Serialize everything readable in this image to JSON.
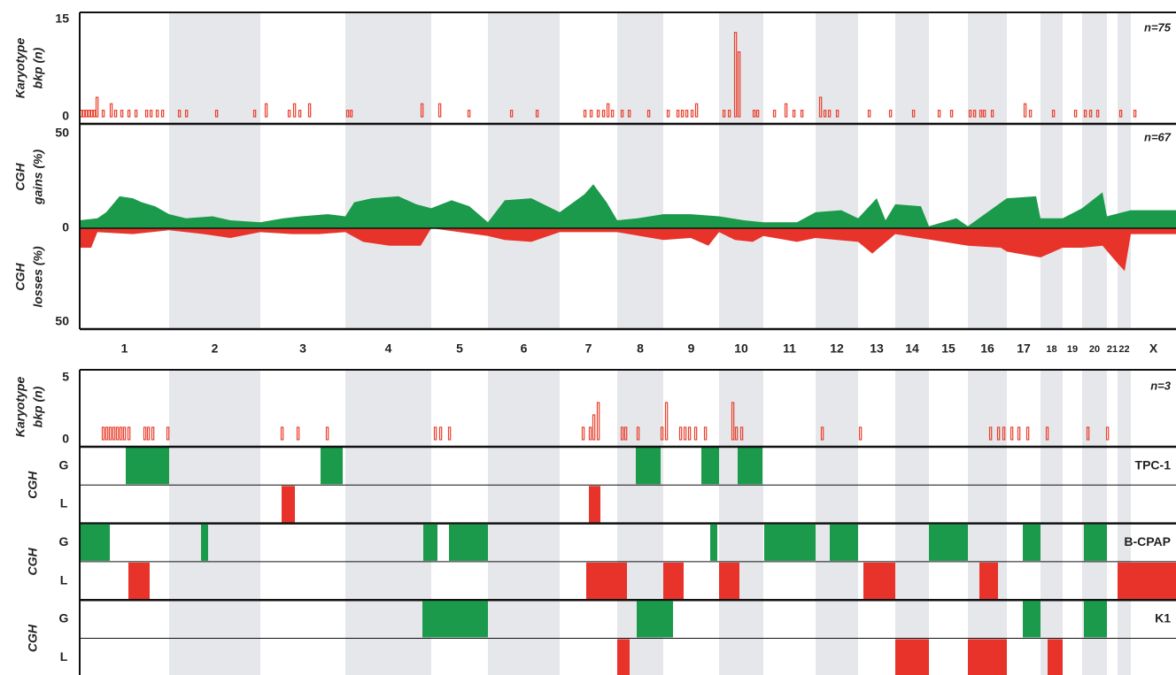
{
  "chromosomes": {
    "labels": [
      "1",
      "2",
      "3",
      "4",
      "5",
      "6",
      "7",
      "8",
      "9",
      "10",
      "11",
      "12",
      "13",
      "14",
      "15",
      "16",
      "17",
      "18",
      "19",
      "20",
      "21",
      "22",
      "X"
    ],
    "bounds": [
      0,
      101,
      204,
      300,
      397,
      461,
      542,
      607,
      659,
      722,
      772,
      831,
      879,
      921,
      959,
      1003,
      1047,
      1085,
      1110,
      1132,
      1160,
      1172,
      1187,
      1238
    ],
    "xlim": [
      0,
      1238
    ]
  },
  "karyotype_all": {
    "ylabel": [
      "Karyotype",
      "bkp (n)"
    ],
    "n_label": "n=75",
    "ylim": [
      0,
      15
    ],
    "yticks": [
      0,
      15
    ],
    "color": "#e8402e",
    "x": [
      2,
      5,
      8,
      11,
      14,
      17,
      20,
      27,
      36,
      41,
      48,
      56,
      64,
      76,
      81,
      88,
      94,
      113,
      121,
      155,
      198,
      211,
      237,
      243,
      249,
      260,
      303,
      307,
      387,
      407,
      440,
      488,
      517,
      571,
      578,
      586,
      592,
      597,
      602,
      613,
      621,
      643,
      665,
      676,
      681,
      686,
      692,
      697,
      728,
      734,
      741,
      745,
      762,
      766,
      785,
      798,
      807,
      816,
      837,
      842,
      847,
      856,
      892,
      916,
      942,
      971,
      985,
      1006,
      1011,
      1018,
      1022,
      1031,
      1068,
      1074,
      1100,
      1125,
      1136,
      1142,
      1150,
      1176,
      1192
    ],
    "values": [
      1,
      1,
      1,
      1,
      1,
      1,
      3,
      1,
      2,
      1,
      1,
      1,
      1,
      1,
      1,
      1,
      1,
      1,
      1,
      1,
      1,
      2,
      1,
      2,
      1,
      2,
      1,
      1,
      2,
      2,
      1,
      1,
      1,
      1,
      1,
      1,
      1,
      2,
      1,
      1,
      1,
      1,
      1,
      1,
      1,
      1,
      1,
      2,
      1,
      1,
      13,
      10,
      1,
      1,
      1,
      2,
      1,
      1,
      3,
      1,
      1,
      1,
      1,
      1,
      1,
      1,
      1,
      1,
      1,
      1,
      1,
      1,
      2,
      1,
      1,
      1,
      1,
      1,
      1,
      1,
      1
    ]
  },
  "cgh_all": {
    "gains_label": [
      "CGH",
      "gains (%)"
    ],
    "losses_label": [
      "CGH",
      "losses (%)"
    ],
    "n_label": "n=67",
    "ylim": [
      0,
      50
    ],
    "yticks": [
      0,
      50
    ],
    "loss_yticks": [
      50
    ],
    "gains": {
      "color": "#1a9a4a",
      "x": [
        0,
        20,
        30,
        45,
        60,
        70,
        85,
        101,
        120,
        150,
        170,
        204,
        230,
        250,
        280,
        300,
        310,
        330,
        360,
        380,
        397,
        420,
        440,
        461,
        480,
        510,
        542,
        570,
        580,
        595,
        607,
        630,
        659,
        690,
        722,
        750,
        772,
        810,
        831,
        860,
        879,
        900,
        910,
        921,
        950,
        959,
        990,
        1003,
        1047,
        1080,
        1085,
        1110,
        1132,
        1155,
        1160,
        1187,
        1238
      ],
      "values": [
        4,
        5,
        8,
        16,
        15,
        13,
        11,
        7,
        5,
        6,
        4,
        3,
        5,
        6,
        7,
        6,
        13,
        15,
        16,
        12,
        10,
        14,
        11,
        3,
        14,
        15,
        8,
        17,
        22,
        13,
        4,
        5,
        7,
        7,
        6,
        4,
        3,
        3,
        8,
        9,
        5,
        15,
        4,
        12,
        11,
        1,
        5,
        1,
        15,
        16,
        5,
        5,
        10,
        18,
        6,
        9,
        9
      ]
    },
    "losses": {
      "color": "#e8332a",
      "x": [
        0,
        13,
        20,
        60,
        101,
        140,
        170,
        204,
        240,
        270,
        300,
        320,
        350,
        385,
        397,
        461,
        480,
        510,
        542,
        607,
        659,
        690,
        710,
        722,
        740,
        760,
        772,
        810,
        831,
        879,
        895,
        921,
        1003,
        1040,
        1047,
        1085,
        1110,
        1132,
        1155,
        1172,
        1180,
        1187,
        1238
      ],
      "values": [
        10,
        10,
        2,
        3,
        1,
        3,
        5,
        2,
        3,
        3,
        2,
        7,
        9,
        9,
        0,
        4,
        6,
        7,
        2,
        2,
        6,
        5,
        9,
        2,
        6,
        7,
        4,
        7,
        5,
        7,
        13,
        3,
        9,
        10,
        12,
        15,
        10,
        10,
        9,
        18,
        22,
        3,
        3
      ]
    }
  },
  "karyotype_lines": {
    "ylabel": [
      "Karyotype",
      "bkp (n)"
    ],
    "n_label": "n=3",
    "ylim": [
      0,
      5
    ],
    "yticks": [
      0,
      5
    ],
    "color": "#e8402e",
    "x": [
      27,
      31,
      35,
      39,
      43,
      47,
      51,
      56,
      74,
      78,
      83,
      100,
      229,
      247,
      280,
      402,
      408,
      418,
      569,
      577,
      581,
      586,
      613,
      617,
      631,
      658,
      663,
      679,
      684,
      689,
      696,
      707,
      738,
      742,
      748,
      839,
      882,
      1029,
      1038,
      1044,
      1053,
      1061,
      1071,
      1093,
      1139,
      1161
    ],
    "values": [
      1,
      1,
      1,
      1,
      1,
      1,
      1,
      1,
      1,
      1,
      1,
      1,
      1,
      1,
      1,
      1,
      1,
      1,
      1,
      1,
      2,
      3,
      1,
      1,
      1,
      1,
      3,
      1,
      1,
      1,
      1,
      1,
      3,
      1,
      1,
      1,
      1,
      1,
      1,
      1,
      1,
      1,
      1,
      1,
      1,
      1
    ]
  },
  "cell_lines": [
    {
      "name": "TPC-1",
      "label": "CGH",
      "rows": [
        {
          "label": "G",
          "color": "#1a9a4a",
          "segments": [
            [
              52,
              101
            ],
            [
              272,
              297
            ],
            [
              628,
              656
            ],
            [
              702,
              722
            ],
            [
              743,
              771
            ]
          ]
        },
        {
          "label": "L",
          "color": "#e8332a",
          "segments": [
            [
              228,
              243
            ],
            [
              575,
              588
            ]
          ]
        }
      ]
    },
    {
      "name": "B-CPAP",
      "label": "CGH",
      "rows": [
        {
          "label": "G",
          "color": "#1a9a4a",
          "segments": [
            [
              0,
              34
            ],
            [
              137,
              145
            ],
            [
              388,
              404
            ],
            [
              417,
              461
            ],
            [
              712,
              720
            ],
            [
              773,
              831
            ],
            [
              847,
              879
            ],
            [
              959,
              1003
            ],
            [
              1065,
              1085
            ],
            [
              1134,
              1160
            ]
          ]
        },
        {
          "label": "L",
          "color": "#e8332a",
          "segments": [
            [
              55,
              79
            ],
            [
              572,
              618
            ],
            [
              659,
              682
            ],
            [
              722,
              745
            ],
            [
              885,
              921
            ],
            [
              1016,
              1037
            ],
            [
              1172,
              1238
            ]
          ]
        }
      ]
    },
    {
      "name": "K1",
      "label": "CGH",
      "rows": [
        {
          "label": "G",
          "color": "#1a9a4a",
          "segments": [
            [
              387,
              461
            ],
            [
              629,
              670
            ],
            [
              1065,
              1085
            ],
            [
              1134,
              1160
            ]
          ]
        },
        {
          "label": "L",
          "color": "#e8332a",
          "segments": [
            [
              607,
              621
            ],
            [
              921,
              959
            ],
            [
              1003,
              1047
            ],
            [
              1093,
              1110
            ]
          ]
        }
      ]
    }
  ]
}
